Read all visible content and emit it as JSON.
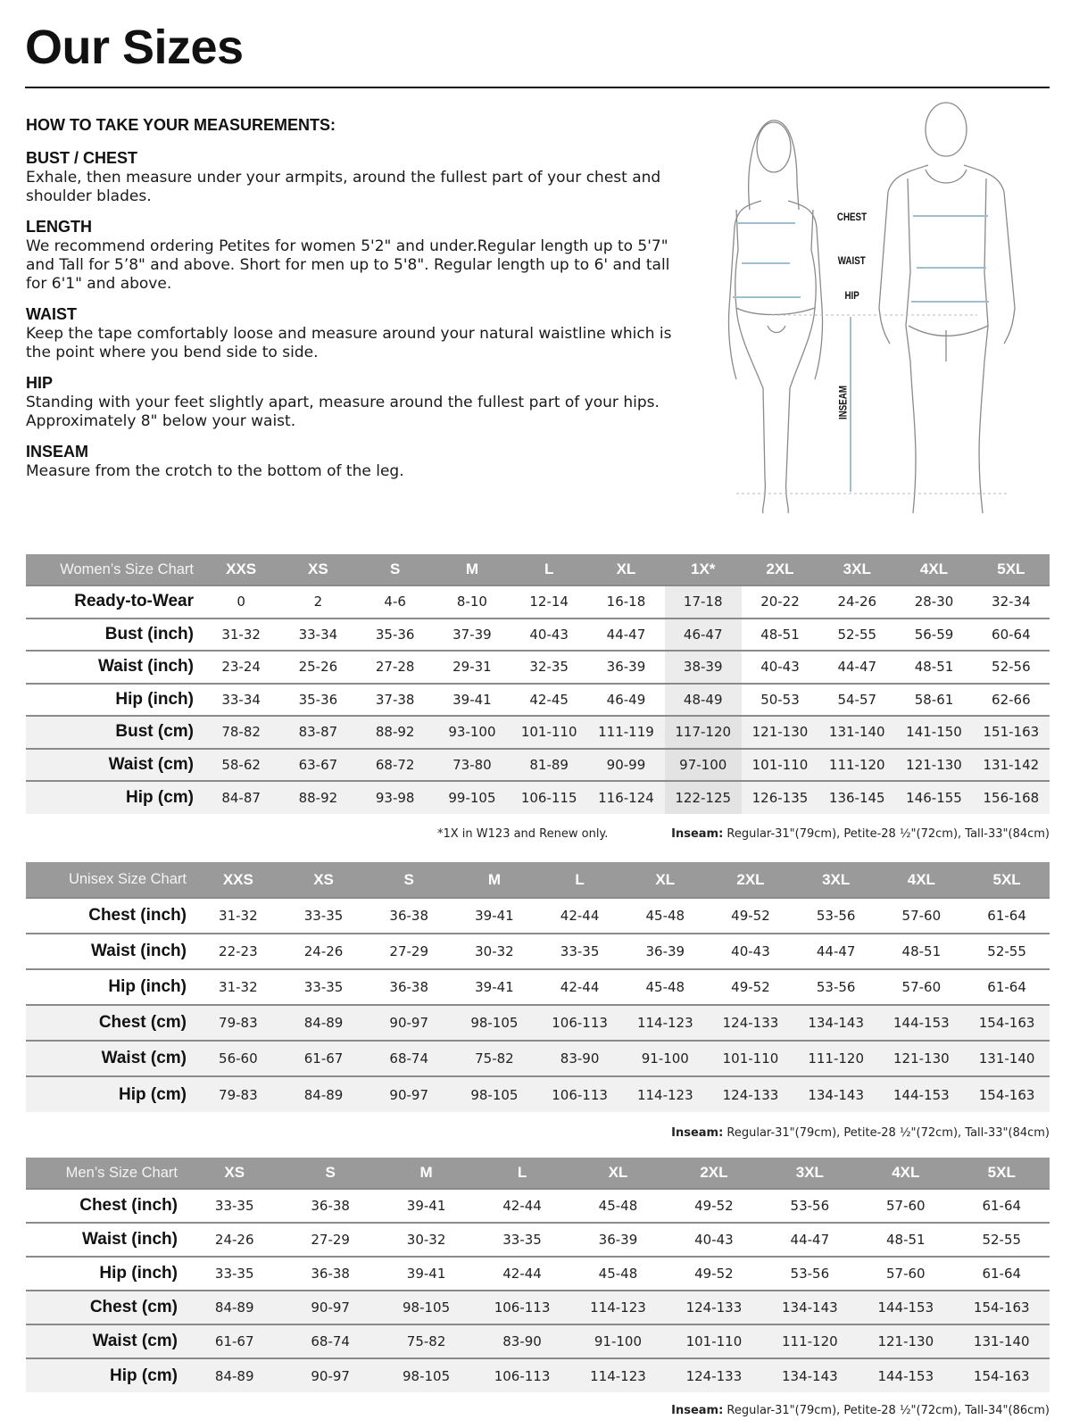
{
  "page_title": "Our Sizes",
  "howto": {
    "heading": "HOW TO TAKE YOUR MEASUREMENTS:",
    "sections": [
      {
        "title": "BUST / CHEST",
        "text": "Exhale, then measure under your armpits, around the fullest part of your chest and shoulder blades."
      },
      {
        "title": "LENGTH",
        "text": "We recommend ordering Petites for women 5'2\" and under.Regular length up to 5'7\" and Tall for 5’8\" and above. Short for men up to 5'8\". Regular length up to 6' and tall for 6'1\" and above."
      },
      {
        "title": "WAIST",
        "text": "Keep the tape comfortably loose and measure around your natural waistline which is the point where you bend side to side."
      },
      {
        "title": "HIP",
        "text": "Standing with your feet slightly apart, measure around the fullest part of your hips. Approximately 8\" below your waist."
      },
      {
        "title": "INSEAM",
        "text": "Measure from the crotch to the bottom of the leg."
      }
    ]
  },
  "figure": {
    "chest": "CHEST",
    "waist": "WAIST",
    "hip": "HIP",
    "inseam": "INSEAM",
    "measure_color": "#9fbfcf"
  },
  "womens": {
    "title": "Women’s Size Chart",
    "sizes": [
      "XXS",
      "XS",
      "S",
      "M",
      "L",
      "XL",
      "1X*",
      "2XL",
      "3XL",
      "4XL",
      "5XL"
    ],
    "highlight_size": "1X*",
    "rows": [
      {
        "label": "Ready-to-Wear",
        "values": [
          "0",
          "2",
          "4-6",
          "8-10",
          "12-14",
          "16-18",
          "17-18",
          "20-22",
          "24-26",
          "28-30",
          "32-34"
        ]
      },
      {
        "label": "Bust (inch)",
        "values": [
          "31-32",
          "33-34",
          "35-36",
          "37-39",
          "40-43",
          "44-47",
          "46-47",
          "48-51",
          "52-55",
          "56-59",
          "60-64"
        ]
      },
      {
        "label": "Waist (inch)",
        "values": [
          "23-24",
          "25-26",
          "27-28",
          "29-31",
          "32-35",
          "36-39",
          "38-39",
          "40-43",
          "44-47",
          "48-51",
          "52-56"
        ]
      },
      {
        "label": "Hip (inch)",
        "values": [
          "33-34",
          "35-36",
          "37-38",
          "39-41",
          "42-45",
          "46-49",
          "48-49",
          "50-53",
          "54-57",
          "58-61",
          "62-66"
        ]
      },
      {
        "label": "Bust (cm)",
        "values": [
          "78-82",
          "83-87",
          "88-92",
          "93-100",
          "101-110",
          "111-119",
          "117-120",
          "121-130",
          "131-140",
          "141-150",
          "151-163"
        ]
      },
      {
        "label": "Waist (cm)",
        "values": [
          "58-62",
          "63-67",
          "68-72",
          "73-80",
          "81-89",
          "90-99",
          "97-100",
          "101-110",
          "111-120",
          "121-130",
          "131-142"
        ]
      },
      {
        "label": "Hip (cm)",
        "values": [
          "84-87",
          "88-92",
          "93-98",
          "99-105",
          "106-115",
          "116-124",
          "122-125",
          "126-135",
          "136-145",
          "146-155",
          "156-168"
        ]
      }
    ],
    "footnote": "*1X in W123 and Renew only.",
    "inseam_label": "Inseam:",
    "inseam_text": " Regular-31\"(79cm), Petite-28 ½\"(72cm), Tall-33\"(84cm)"
  },
  "unisex": {
    "title": "Unisex Size Chart",
    "sizes": [
      "XXS",
      "XS",
      "S",
      "M",
      "L",
      "XL",
      "2XL",
      "3XL",
      "4XL",
      "5XL"
    ],
    "rows": [
      {
        "label": "Chest (inch)",
        "values": [
          "31-32",
          "33-35",
          "36-38",
          "39-41",
          "42-44",
          "45-48",
          "49-52",
          "53-56",
          "57-60",
          "61-64"
        ]
      },
      {
        "label": "Waist (inch)",
        "values": [
          "22-23",
          "24-26",
          "27-29",
          "30-32",
          "33-35",
          "36-39",
          "40-43",
          "44-47",
          "48-51",
          "52-55"
        ]
      },
      {
        "label": "Hip (inch)",
        "values": [
          "31-32",
          "33-35",
          "36-38",
          "39-41",
          "42-44",
          "45-48",
          "49-52",
          "53-56",
          "57-60",
          "61-64"
        ]
      },
      {
        "label": "Chest (cm)",
        "values": [
          "79-83",
          "84-89",
          "90-97",
          "98-105",
          "106-113",
          "114-123",
          "124-133",
          "134-143",
          "144-153",
          "154-163"
        ]
      },
      {
        "label": "Waist (cm)",
        "values": [
          "56-60",
          "61-67",
          "68-74",
          "75-82",
          "83-90",
          "91-100",
          "101-110",
          "111-120",
          "121-130",
          "131-140"
        ]
      },
      {
        "label": "Hip (cm)",
        "values": [
          "79-83",
          "84-89",
          "90-97",
          "98-105",
          "106-113",
          "114-123",
          "124-133",
          "134-143",
          "144-153",
          "154-163"
        ]
      }
    ],
    "inseam_label": "Inseam:",
    "inseam_text": " Regular-31\"(79cm), Petite-28 ½\"(72cm), Tall-33\"(84cm)"
  },
  "mens": {
    "title": "Men’s Size Chart",
    "sizes": [
      "XS",
      "S",
      "M",
      "L",
      "XL",
      "2XL",
      "3XL",
      "4XL",
      "5XL"
    ],
    "rows": [
      {
        "label": "Chest (inch)",
        "values": [
          "33-35",
          "36-38",
          "39-41",
          "42-44",
          "45-48",
          "49-52",
          "53-56",
          "57-60",
          "61-64"
        ]
      },
      {
        "label": "Waist (inch)",
        "values": [
          "24-26",
          "27-29",
          "30-32",
          "33-35",
          "36-39",
          "40-43",
          "44-47",
          "48-51",
          "52-55"
        ]
      },
      {
        "label": "Hip (inch)",
        "values": [
          "33-35",
          "36-38",
          "39-41",
          "42-44",
          "45-48",
          "49-52",
          "53-56",
          "57-60",
          "61-64"
        ]
      },
      {
        "label": "Chest (cm)",
        "values": [
          "84-89",
          "90-97",
          "98-105",
          "106-113",
          "114-123",
          "124-133",
          "134-143",
          "144-153",
          "154-163"
        ]
      },
      {
        "label": "Waist (cm)",
        "values": [
          "61-67",
          "68-74",
          "75-82",
          "83-90",
          "91-100",
          "101-110",
          "111-120",
          "121-130",
          "131-140"
        ]
      },
      {
        "label": "Hip (cm)",
        "values": [
          "84-89",
          "90-97",
          "98-105",
          "106-113",
          "114-123",
          "124-133",
          "134-143",
          "144-153",
          "154-163"
        ]
      }
    ],
    "inseam_label": "Inseam:",
    "inseam_text": " Regular-31\"(79cm), Petite-28 ½\"(72cm), Tall-34\"(86cm)"
  }
}
